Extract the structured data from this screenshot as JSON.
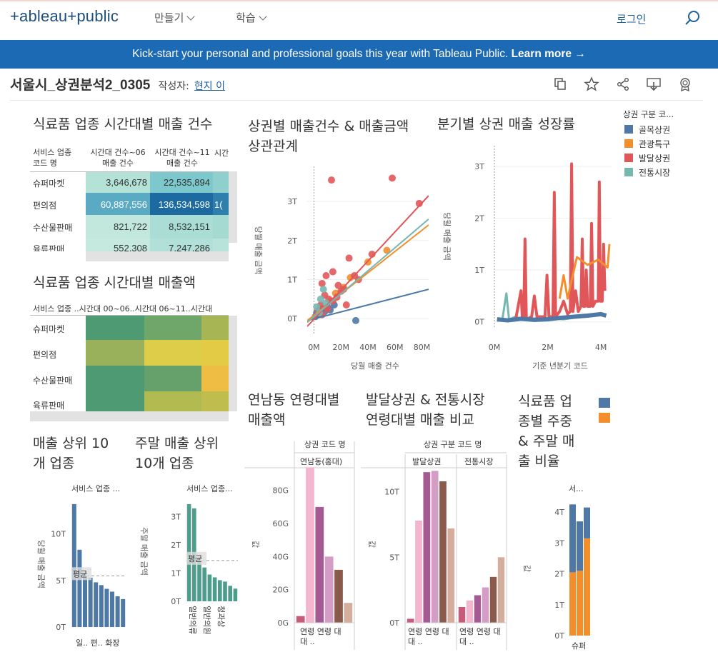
{
  "header": {
    "logo": "+ableau+public",
    "nav": [
      {
        "label": "만들기"
      },
      {
        "label": "학습"
      }
    ],
    "login": "로그인"
  },
  "banner": {
    "text": "Kick-start your personal and professional goals this year with Tableau Public. ",
    "link": "Learn more →"
  },
  "viz": {
    "title": "서울시_상권분석2_0305",
    "author_label": "작성자:",
    "author": "현지 이",
    "toolbar": [
      "copy-icon",
      "star-icon",
      "share-icon",
      "download-icon",
      "badge-icon"
    ]
  },
  "sheets": {
    "count_table": {
      "title": "식료품 업종 시간대별 매출 건수",
      "row_header": [
        "서비스 업종",
        "코드 명"
      ],
      "col1": [
        "시간대 건수~06",
        "매출 건수"
      ],
      "col2": [
        "시간대 건수~11",
        "매출 건수"
      ],
      "col3": "시간",
      "rows": [
        {
          "label": "슈퍼마켓",
          "v1": "3,646,678",
          "v2": "22,535,894",
          "v3": ""
        },
        {
          "label": "편의점",
          "v1": "60,887,556",
          "v2": "136,534,598",
          "v3": "1("
        },
        {
          "label": "수산물판매",
          "v1": "821,722",
          "v2": "8,532,151",
          "v3": ""
        },
        {
          "label": "육류판매",
          "v1": "552,308",
          "v2": "7,247,286",
          "v3": ""
        }
      ]
    },
    "amount_heatmap": {
      "title": "식료품 업종 시간대별 매출액",
      "header": "서비스 업종 ..시간대 00~06..시간대 06~11..시간대",
      "rows": [
        "슈퍼마켓",
        "편의점",
        "수산물판매",
        "육류판매"
      ]
    },
    "scatter": {
      "title_lines": [
        "상권별 매출건수 & 매출금액",
        "상관관계"
      ]
    },
    "growth": {
      "title": "분기별 상권 매출 성장률"
    },
    "legend": {
      "title": "상권 구분 코...",
      "items": [
        {
          "label": "골목상권",
          "color": "#4e79a7"
        },
        {
          "label": "관광특구",
          "color": "#f28e2b"
        },
        {
          "label": "발달상권",
          "color": "#e15759"
        },
        {
          "label": "전통시장",
          "color": "#76b7b2"
        }
      ]
    },
    "top10": {
      "title_lines": [
        "매출 상위 10",
        "개 업종"
      ]
    },
    "weekend_top10": {
      "title_lines": [
        "주말 매출 상위",
        "10개 업종"
      ]
    },
    "yeonnam": {
      "title_lines": [
        "연남동 연령대별",
        "매출액"
      ]
    },
    "compare": {
      "title_lines": [
        "발달상권 & 전통시장",
        "연령대별 매출 비교"
      ]
    },
    "weekday": {
      "title_lines": [
        "식료품 업",
        "종별 주중",
        "& 주말 매",
        "출 비율"
      ]
    }
  },
  "chart_data": [
    {
      "type": "scatter",
      "xlabel": "당월 매출 건수",
      "ylabel": "당월 매출 금액",
      "xticks": [
        "0M",
        "20M",
        "40M",
        "60M",
        "80M"
      ],
      "yticks": [
        "0T",
        "1T",
        "2T",
        "3T"
      ],
      "xlim": [
        -5,
        85
      ],
      "ylim": [
        -0.4,
        3.9
      ],
      "series": [
        {
          "name": "골목상권",
          "color": "#4e79a7",
          "trend": [
            [
              -5,
              -0.05
            ],
            [
              85,
              0.75
            ]
          ],
          "points": [
            [
              1,
              0.05
            ],
            [
              2,
              0.15
            ],
            [
              3,
              0.1
            ],
            [
              4,
              0.2
            ],
            [
              5,
              0.12
            ],
            [
              6,
              0.25
            ],
            [
              8,
              0.18
            ],
            [
              10,
              0.3
            ],
            [
              12,
              0.22
            ],
            [
              15,
              0.35
            ],
            [
              31,
              -0.05
            ]
          ]
        },
        {
          "name": "관광특구",
          "color": "#f28e2b",
          "trend": [
            [
              -5,
              -0.05
            ],
            [
              85,
              2.4
            ]
          ],
          "points": [
            [
              12,
              0.45
            ],
            [
              16,
              0.65
            ],
            [
              22,
              0.8
            ],
            [
              27,
              1.05
            ],
            [
              40,
              1.45
            ],
            [
              54,
              1.75
            ]
          ]
        },
        {
          "name": "발달상권",
          "color": "#e15759",
          "trend": [
            [
              -5,
              -0.2
            ],
            [
              85,
              3.15
            ]
          ],
          "points": [
            [
              13,
              3.55
            ],
            [
              58,
              3.6
            ],
            [
              78,
              2.95
            ],
            [
              43,
              1.65
            ],
            [
              26,
              1.55
            ],
            [
              6,
              0.9
            ],
            [
              9,
              1.1
            ],
            [
              14,
              1.2
            ],
            [
              18,
              0.85
            ],
            [
              20,
              0.7
            ],
            [
              22,
              0.75
            ],
            [
              30,
              1.1
            ],
            [
              33,
              1.0
            ],
            [
              5,
              0.35
            ],
            [
              3,
              0.2
            ],
            [
              8,
              0.6
            ],
            [
              11,
              0.5
            ],
            [
              14,
              0.45
            ],
            [
              17,
              0.55
            ],
            [
              24,
              0.35
            ],
            [
              6,
              0.1
            ],
            [
              10,
              0.25
            ]
          ]
        },
        {
          "name": "전통시장",
          "color": "#76b7b2",
          "trend": [
            [
              -5,
              -0.1
            ],
            [
              85,
              2.55
            ]
          ],
          "points": [
            [
              7,
              0.75
            ],
            [
              2,
              0.3
            ],
            [
              4,
              0.15
            ],
            [
              5,
              0.5
            ],
            [
              9,
              0.4
            ]
          ]
        }
      ]
    },
    {
      "type": "line",
      "xlabel": "기준 년분기 코드",
      "ylabel": "당월 매출 금액",
      "xticks": [
        "0M",
        "2M",
        "4M"
      ],
      "yticks": [
        "0T",
        "1T",
        "2T",
        "3T"
      ],
      "xlim": [
        0,
        4.4
      ],
      "ylim": [
        -0.1,
        3.4
      ]
    },
    {
      "type": "bar",
      "name": "top10",
      "header": "서비스 업종 ...",
      "ylabel": "당월 매출 금액",
      "yticks": [
        "0T",
        "5T",
        "10T"
      ],
      "ylim": [
        0,
        13.5
      ],
      "values": [
        13.2,
        8.3,
        5.5,
        5.3,
        4.8,
        4.5,
        4.1,
        3.8,
        3.3,
        3.0
      ],
      "average": 5.5,
      "avg_label": "평균",
      "xlabel": "일.. 편.. 화장",
      "color": "#4e79a7"
    },
    {
      "type": "bar",
      "name": "weekend_top10",
      "header": "서비스 업종...",
      "ylabel": "주말 매출 금액",
      "yticks": [
        "0T",
        "1T",
        "2T",
        "3T"
      ],
      "ylim": [
        0,
        3.55
      ],
      "values": [
        3.45,
        3.3,
        1.45,
        1.2,
        0.95,
        0.85,
        0.75,
        0.7,
        0.55,
        0.45
      ],
      "average": 1.45,
      "avg_label": "평균",
      "xlabel": [
        "일반의류",
        "일반의원",
        "청과상"
      ],
      "color": "#4e9d8c"
    },
    {
      "type": "bar",
      "name": "yeonnam",
      "header1": "상권 코드 명",
      "header2": "연남동(홍대)",
      "ylabel": "값",
      "yticks": [
        "0G",
        "20G",
        "40G",
        "60G",
        "80G"
      ],
      "ylim": [
        0,
        95
      ],
      "values": [
        4,
        94,
        70,
        40,
        32,
        12
      ],
      "colors": [
        "#c75b7a",
        "#f4b5cf",
        "#a55a93",
        "#d59cc6",
        "#8c5a4a",
        "#d4ad9d"
      ],
      "xlabel": "연령 연령 대 .. 대 .."
    },
    {
      "type": "bar",
      "name": "compare",
      "header1": "상권 구분 코드 명",
      "headers2": [
        "발달상권",
        "전통시장"
      ],
      "ylabel": "값",
      "yticks": [
        "0T",
        "5T",
        "10T"
      ],
      "ylim": [
        0,
        12
      ],
      "groups": [
        {
          "name": "발달상권",
          "values": [
            0.3,
            7.8,
            11.5,
            11.6,
            10.8,
            7.2
          ]
        },
        {
          "name": "전통시장",
          "values": [
            1.2,
            1.7,
            2.1,
            2.7,
            3.5,
            5.0
          ]
        }
      ],
      "colors": [
        "#c75b7a",
        "#f4b5cf",
        "#a55a93",
        "#d59cc6",
        "#8c5a4a",
        "#d4ad9d"
      ],
      "xlabel": "연령 연령 대 .. 대 .."
    },
    {
      "type": "bar",
      "name": "weekday_stack",
      "header": "서...",
      "ylabel": "값",
      "yticks": [
        "0T",
        "1T",
        "2T",
        "3T",
        "4T"
      ],
      "ylim": [
        0,
        4.35
      ],
      "series": [
        {
          "name": "주중",
          "color": "#f28e2b",
          "values": [
            2.05,
            2.1,
            3.15
          ]
        },
        {
          "name": "주말",
          "color": "#4e79a7",
          "values": [
            2.2,
            1.6,
            1.0
          ]
        }
      ],
      "xlabel": "슈퍼"
    }
  ]
}
